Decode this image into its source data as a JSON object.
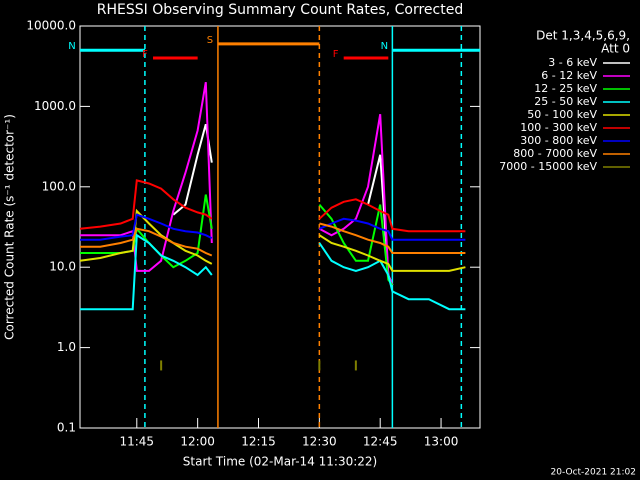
{
  "chart_data": {
    "type": "line",
    "title": "RHESSI Observing Summary Count Rates, Corrected",
    "x_label": "Start Time (02-Mar-14 11:30:22)",
    "y_label": "Corrected Count Rate (s⁻¹ detector⁻¹)",
    "legend_title": [
      "Det 1,3,4,5,6,9,",
      "Att 0"
    ],
    "footer": "20-Oct-2021 21:02",
    "log_y": true,
    "xlim": [
      31,
      129.6
    ],
    "xticks": [
      {
        "value": 45,
        "label": "11:45"
      },
      {
        "value": 60,
        "label": "12:00"
      },
      {
        "value": 75,
        "label": "12:15"
      },
      {
        "value": 90,
        "label": "12:30"
      },
      {
        "value": 105,
        "label": "12:45"
      },
      {
        "value": 120,
        "label": "13:00"
      }
    ],
    "ylim": [
      0.1,
      10000
    ],
    "yticks": [
      {
        "value": 0.1,
        "label": "0.1"
      },
      {
        "value": 1,
        "label": "1.0"
      },
      {
        "value": 10,
        "label": "10.0"
      },
      {
        "value": 100,
        "label": "100.0"
      },
      {
        "value": 1000,
        "label": "1000.0"
      },
      {
        "value": 10000,
        "label": "10000.0"
      }
    ],
    "x": [
      31,
      36,
      41,
      44,
      45,
      48,
      51,
      54,
      57,
      60,
      62,
      63.5,
      75,
      90,
      93,
      96,
      99,
      102,
      105,
      107,
      108,
      112,
      117,
      122,
      126
    ],
    "series": [
      {
        "name": "3 - 6 keV",
        "color": "#ffffff",
        "values": [
          null,
          null,
          null,
          null,
          null,
          null,
          null,
          45,
          60,
          250,
          600,
          200,
          null,
          null,
          null,
          null,
          null,
          60,
          250,
          8,
          6,
          null,
          null,
          null,
          null
        ]
      },
      {
        "name": "6 - 12 keV",
        "color": "#ff00ff",
        "values": [
          25,
          25,
          25,
          28,
          9,
          9,
          12,
          50,
          150,
          500,
          2000,
          20,
          null,
          30,
          25,
          30,
          40,
          100,
          800,
          8,
          6,
          null,
          null,
          null,
          null
        ]
      },
      {
        "name": "12 - 25 keV",
        "color": "#00ff00",
        "values": [
          15,
          15,
          15,
          16,
          30,
          20,
          14,
          10,
          12,
          15,
          80,
          30,
          null,
          60,
          40,
          20,
          12,
          12,
          60,
          7,
          6,
          null,
          null,
          null,
          null
        ]
      },
      {
        "name": "25 - 50 keV",
        "color": "#00ffff",
        "values": [
          3,
          3,
          3,
          3,
          25,
          20,
          14,
          12,
          10,
          8,
          10,
          8,
          null,
          20,
          12,
          10,
          9,
          10,
          12,
          8,
          5,
          4,
          4,
          3,
          3
        ]
      },
      {
        "name": "50 - 100 keV",
        "color": "#e0e000",
        "values": [
          12,
          13,
          15,
          16,
          50,
          35,
          25,
          20,
          16,
          14,
          12,
          11,
          null,
          25,
          20,
          18,
          16,
          14,
          12,
          11,
          9,
          9,
          9,
          9,
          10
        ]
      },
      {
        "name": "100 - 300 keV",
        "color": "#ff0000",
        "values": [
          30,
          32,
          35,
          40,
          120,
          110,
          95,
          70,
          55,
          48,
          45,
          40,
          null,
          40,
          55,
          65,
          70,
          60,
          50,
          45,
          30,
          28,
          28,
          28,
          28
        ]
      },
      {
        "name": "300 - 800 keV",
        "color": "#0000ff",
        "values": [
          22,
          22,
          24,
          25,
          45,
          40,
          35,
          30,
          28,
          27,
          25,
          23,
          null,
          30,
          35,
          40,
          38,
          35,
          30,
          28,
          22,
          22,
          22,
          22,
          22
        ]
      },
      {
        "name": "800 - 7000 keV",
        "color": "#ff8000",
        "values": [
          18,
          18,
          20,
          22,
          30,
          28,
          24,
          20,
          18,
          17,
          15,
          14,
          null,
          35,
          32,
          28,
          25,
          22,
          20,
          18,
          15,
          15,
          15,
          15,
          15
        ]
      },
      {
        "name": "7000 - 15000 keV",
        "color": "#808000",
        "values": [
          null,
          null,
          null,
          null,
          null,
          null,
          0.6,
          null,
          null,
          null,
          null,
          null,
          null,
          0.6,
          null,
          null,
          0.6,
          null,
          null,
          null,
          null,
          null,
          null,
          null,
          null
        ]
      }
    ],
    "intervals": [
      {
        "label": "N",
        "color": "#00ffff",
        "y": 5000,
        "start": 31,
        "end": 47
      },
      {
        "label": "N",
        "color": "#00ffff",
        "y": 5000,
        "start": 108,
        "end": 129.6
      },
      {
        "label": "F",
        "color": "#ff0000",
        "y": 4000,
        "start": 49,
        "end": 60
      },
      {
        "label": "F",
        "color": "#ff0000",
        "y": 4000,
        "start": 96,
        "end": 107
      },
      {
        "label": "S",
        "color": "#ff8000",
        "y": 6000,
        "start": 65,
        "end": 90
      }
    ],
    "vlines": [
      {
        "x": 47,
        "color": "#00ffff",
        "dashed": true
      },
      {
        "x": 125,
        "color": "#00ffff",
        "dashed": true
      },
      {
        "x": 108,
        "color": "#00ffff",
        "dashed": false
      },
      {
        "x": 65,
        "color": "#ff8000",
        "dashed": false
      },
      {
        "x": 90,
        "color": "#ff8000",
        "dashed": true
      }
    ]
  }
}
